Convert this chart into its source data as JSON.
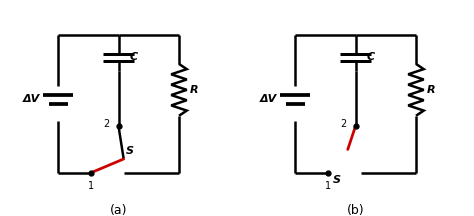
{
  "bg_color": "#ffffff",
  "line_color": "#000000",
  "red_color": "#cc0000",
  "line_width": 1.8,
  "label_a": "(a)",
  "label_b": "(b)",
  "label_C": "C",
  "label_R": "R",
  "label_DV": "ΔV",
  "label_S": "S",
  "label_1": "1",
  "label_2": "2"
}
